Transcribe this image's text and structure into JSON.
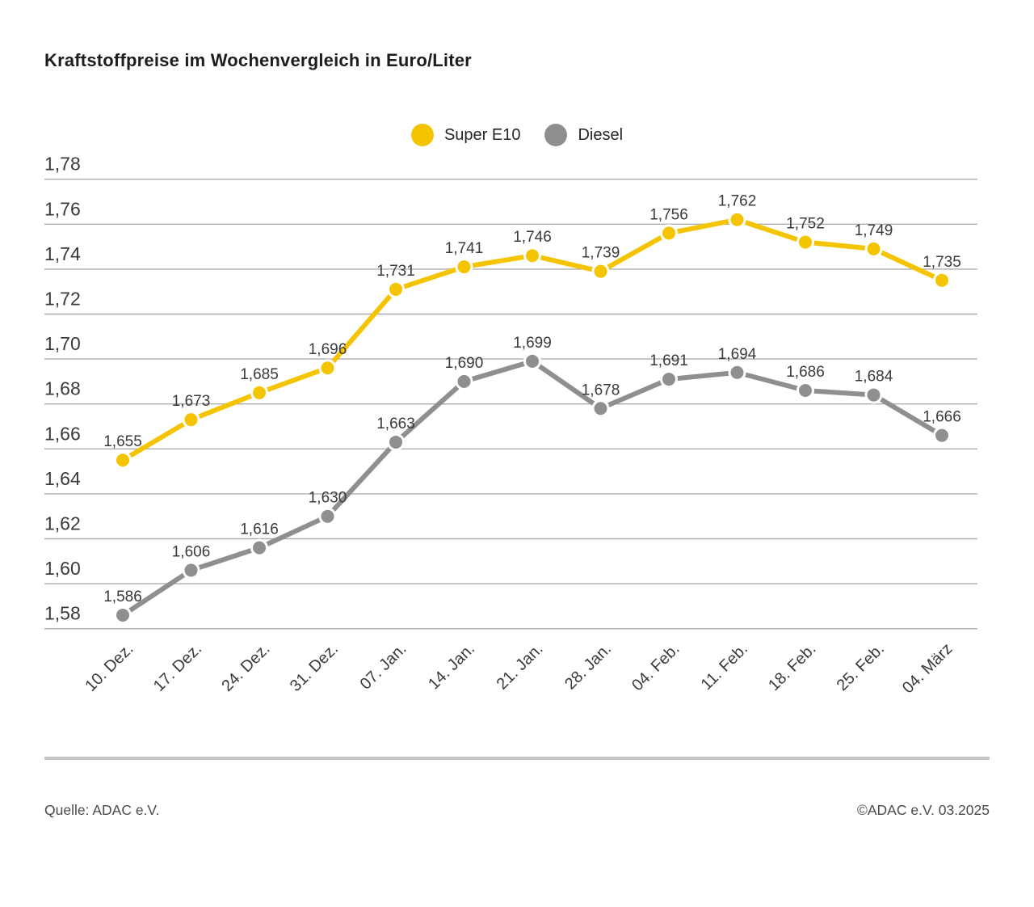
{
  "title": "Kraftstoffpreise im Wochenvergleich in Euro/Liter",
  "footer": {
    "source": "Quelle: ADAC e.V.",
    "copyright": "©ADAC e.V. 03.2025"
  },
  "chart_data": {
    "type": "line",
    "title": "Kraftstoffpreise im Wochenvergleich in Euro/Liter",
    "unit": "Euro/Liter",
    "categories": [
      "10. Dez.",
      "17. Dez.",
      "24. Dez.",
      "31. Dez.",
      "07. Jan.",
      "14. Jan.",
      "21. Jan.",
      "28. Jan.",
      "04. Feb.",
      "11. Feb.",
      "18. Feb.",
      "25. Feb.",
      "04. März"
    ],
    "series": [
      {
        "name": "Super E10",
        "color": "#F5C400",
        "values": [
          1.655,
          1.673,
          1.685,
          1.696,
          1.731,
          1.741,
          1.746,
          1.739,
          1.756,
          1.762,
          1.752,
          1.749,
          1.735
        ],
        "labels": [
          "1,655",
          "1,673",
          "1,685",
          "1,696",
          "1,731",
          "1,741",
          "1,746",
          "1,739",
          "1,756",
          "1,762",
          "1,752",
          "1,749",
          "1,735"
        ]
      },
      {
        "name": "Diesel",
        "color": "#8F8F8F",
        "values": [
          1.586,
          1.606,
          1.616,
          1.63,
          1.663,
          1.69,
          1.699,
          1.678,
          1.691,
          1.694,
          1.686,
          1.684,
          1.666
        ],
        "labels": [
          "1,586",
          "1,606",
          "1,616",
          "1,630",
          "1,663",
          "1,690",
          "1,699",
          "1,678",
          "1,691",
          "1,694",
          "1,686",
          "1,684",
          "1,666"
        ]
      }
    ],
    "ylim": [
      1.58,
      1.78
    ],
    "ytick_step": 0.02,
    "ytick_labels": [
      "1,78",
      "1,76",
      "1,74",
      "1,72",
      "1,70",
      "1,68",
      "1,66",
      "1,64",
      "1,62",
      "1,60",
      "1,58"
    ],
    "grid": true,
    "legend_position": "top-center",
    "value_labels": true,
    "colors": {
      "grid": "#ADADAD",
      "value_label_text": "#3A3A3A",
      "axis_text": "#3A3A3A"
    }
  }
}
